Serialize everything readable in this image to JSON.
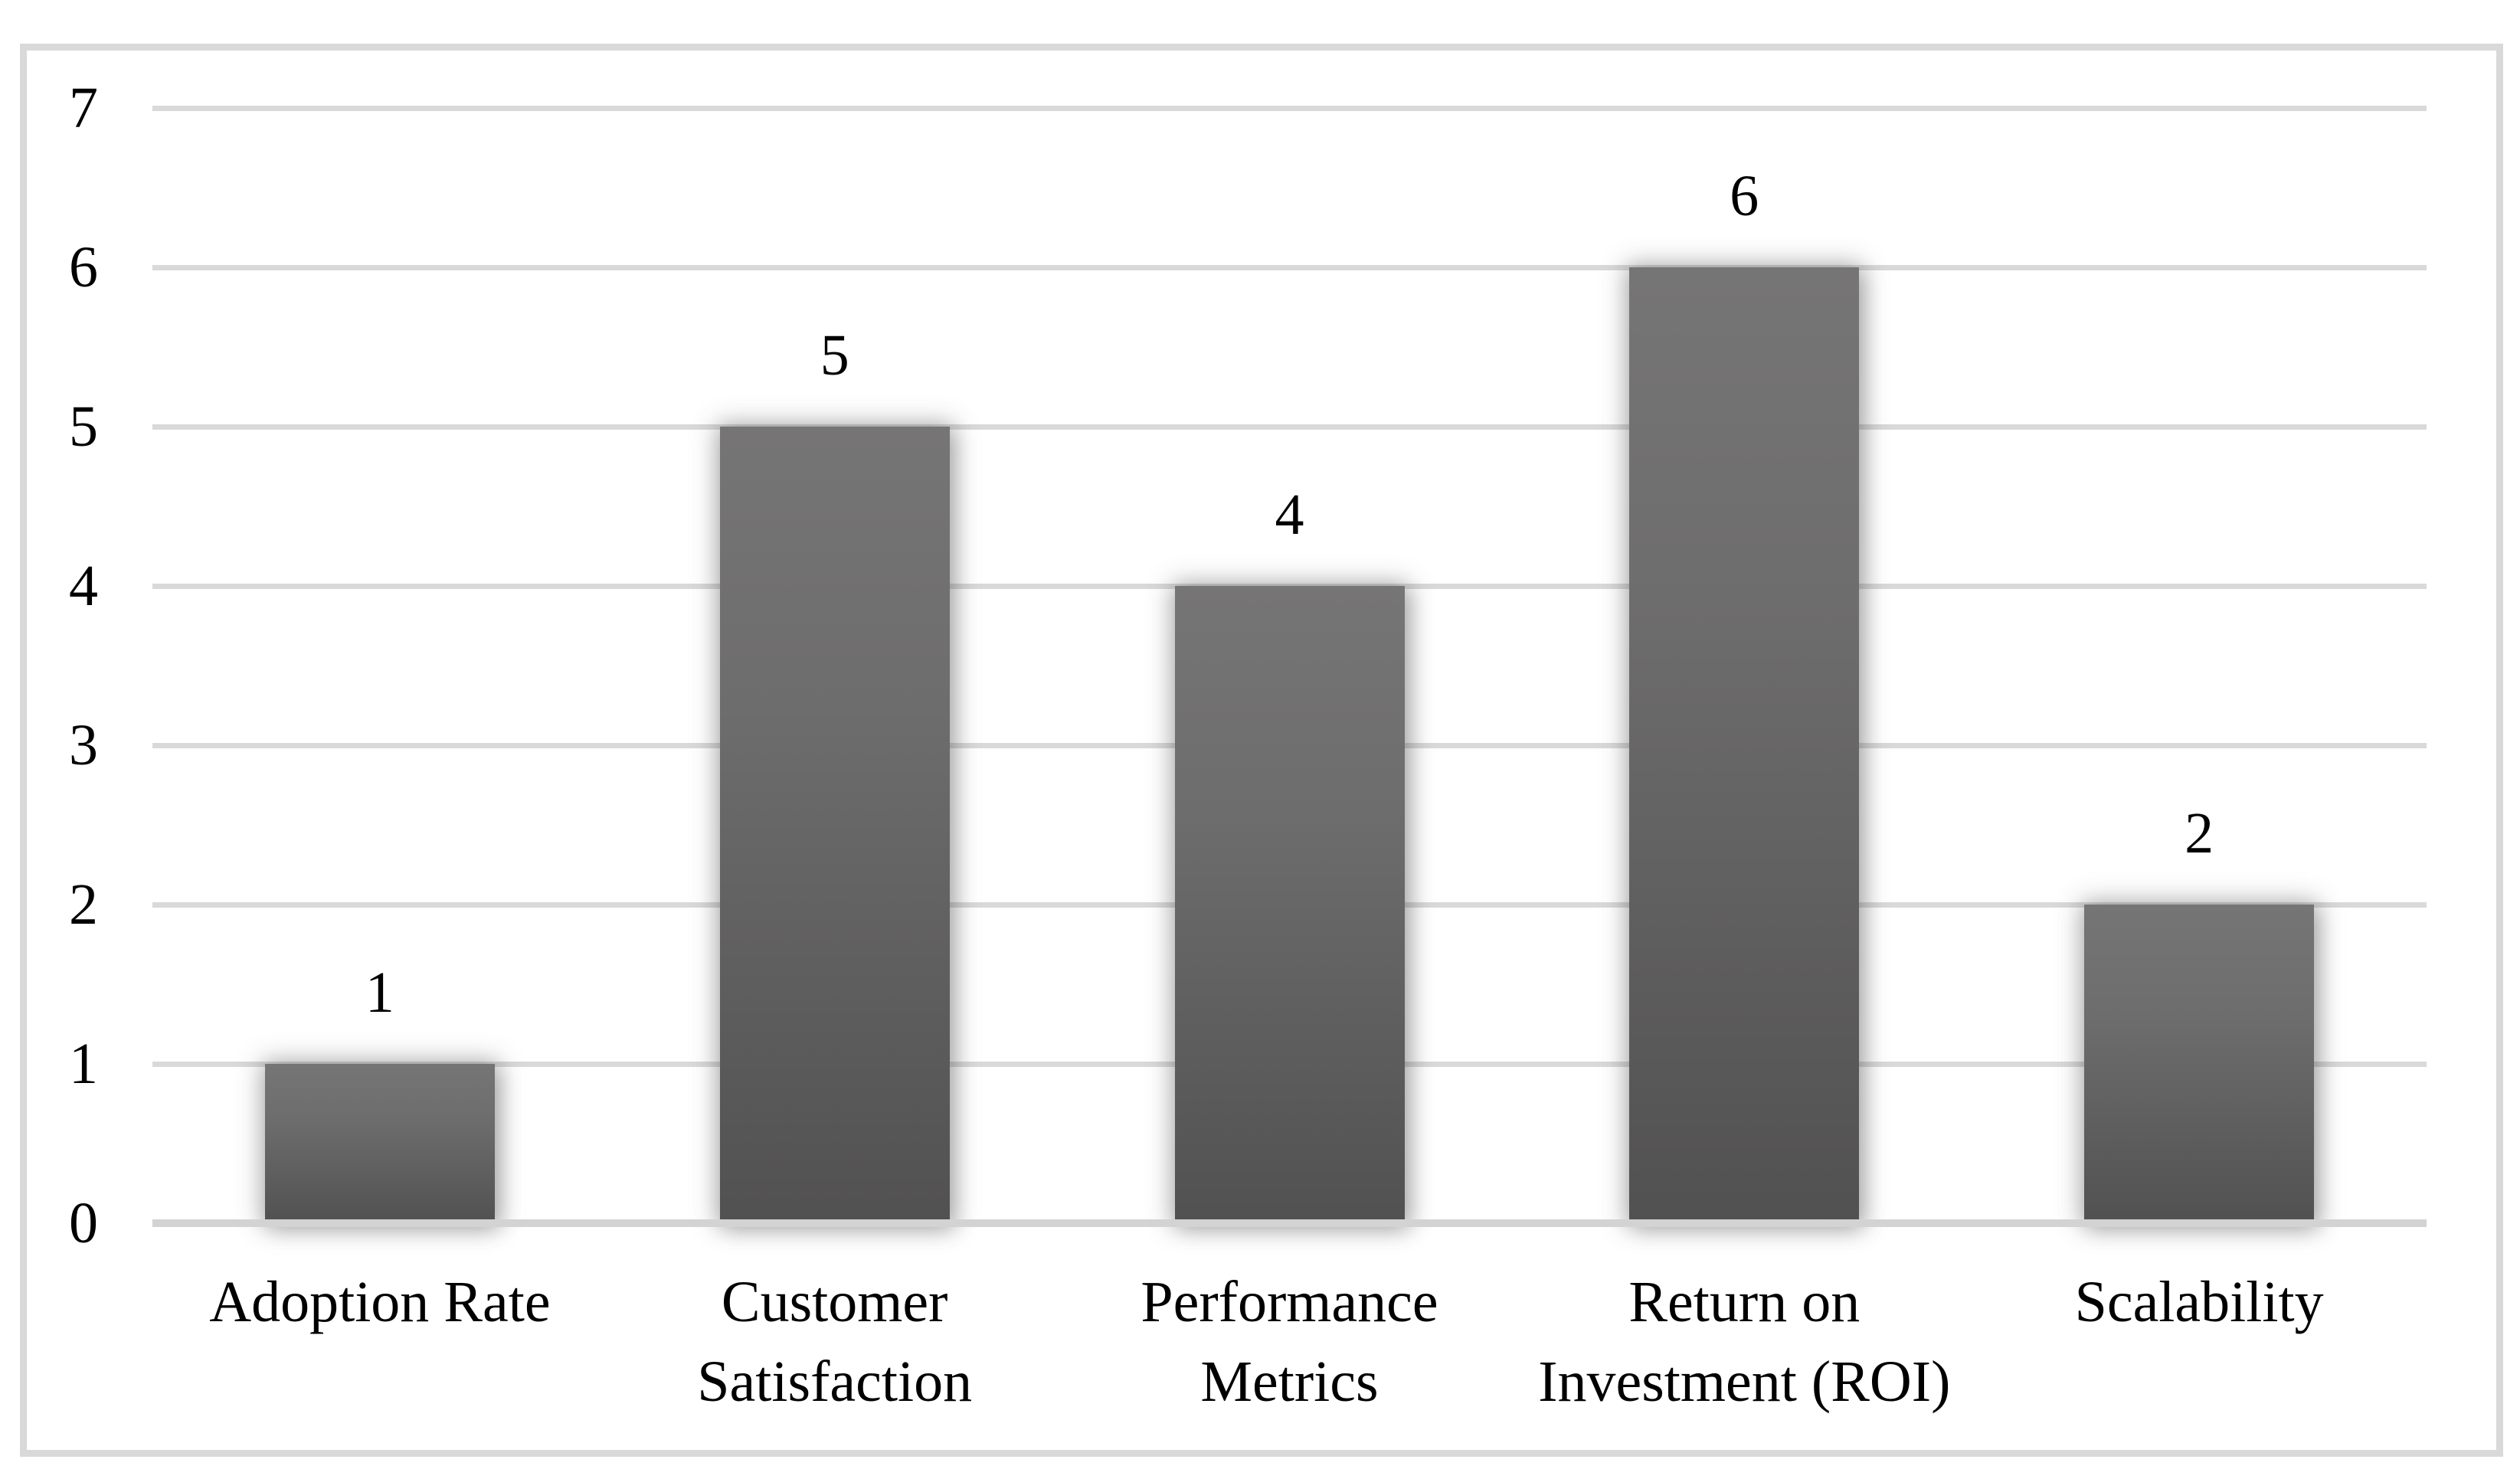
{
  "figure": {
    "background": "#ffffff",
    "frame_border_color": "#d9d9d9"
  },
  "chart_data": {
    "type": "bar",
    "title": "",
    "categories": [
      "Adoption Rate",
      "Customer Satisfaction",
      "Performance Metrics",
      "Return on Investment (ROI)",
      "Scalability"
    ],
    "category_lines": [
      [
        "Adoption Rate"
      ],
      [
        "Customer",
        "Satisfaction"
      ],
      [
        "Performance",
        "Metrics"
      ],
      [
        "Return on",
        "Investment (ROI)"
      ],
      [
        "Scalability"
      ]
    ],
    "values": [
      1,
      5,
      4,
      6,
      2
    ],
    "data_labels": [
      "1",
      "5",
      "4",
      "6",
      "2"
    ],
    "yticks": [
      0,
      1,
      2,
      3,
      4,
      5,
      6,
      7
    ],
    "ylim": [
      0,
      7
    ],
    "xlabel": "",
    "ylabel": "",
    "grid": true,
    "legend_position": "none",
    "bar_color_top": "#767575",
    "bar_color_mid": "#6e6d6d",
    "bar_color_bottom": "#525151",
    "gridline_color": "#d9d9d9",
    "axis_line_color": "#d3d3d3",
    "text_color": "#000000"
  }
}
